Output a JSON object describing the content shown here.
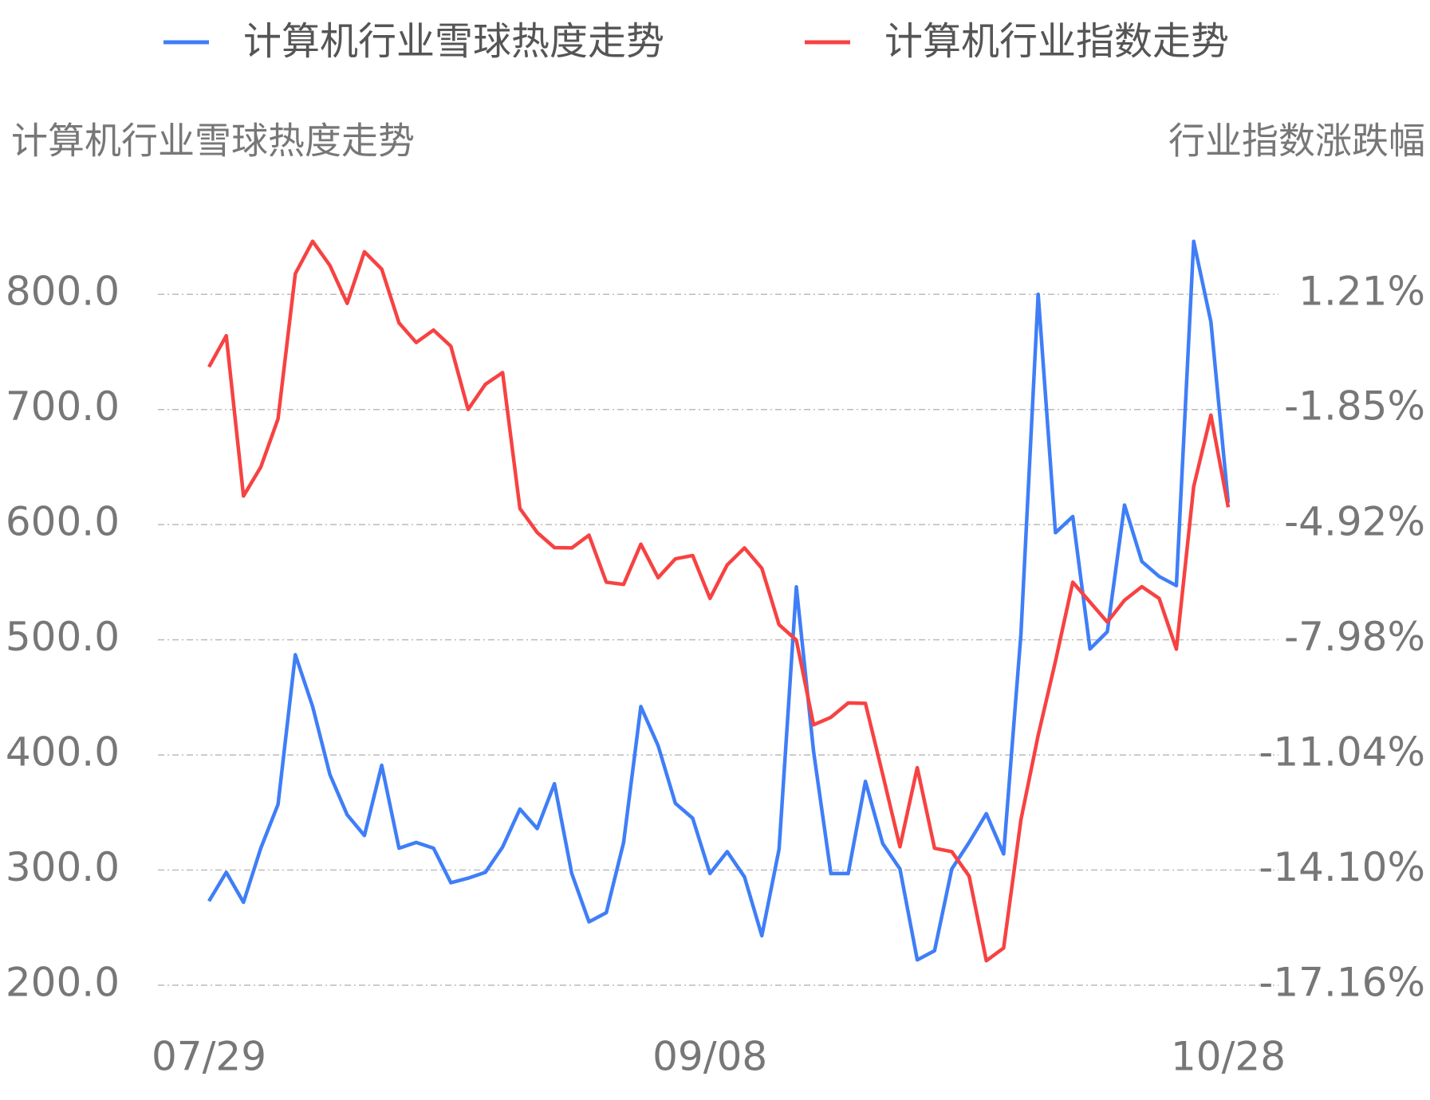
{
  "chart_data": {
    "type": "line",
    "legend": "top",
    "grid": true,
    "y_label": "计算机行业雪球热度走势",
    "y2_label": "行业指数涨跌幅",
    "categories": [
      "07/29",
      null,
      null,
      null,
      null,
      null,
      null,
      null,
      null,
      null,
      null,
      null,
      null,
      null,
      null,
      null,
      null,
      null,
      null,
      null,
      null,
      null,
      null,
      null,
      null,
      null,
      null,
      null,
      null,
      "09/08",
      null,
      null,
      null,
      null,
      null,
      null,
      null,
      null,
      null,
      null,
      null,
      null,
      null,
      null,
      null,
      null,
      null,
      null,
      null,
      null,
      null,
      null,
      null,
      null,
      null,
      null,
      null,
      null,
      null,
      "10/28"
    ],
    "ylim": [
      200,
      850
    ],
    "yticks": [
      {
        "value": 200,
        "label": "200.0"
      },
      {
        "value": 300,
        "label": "300.0"
      },
      {
        "value": 400,
        "label": "400.0"
      },
      {
        "value": 500,
        "label": "500.0"
      },
      {
        "value": 600,
        "label": "600.0"
      },
      {
        "value": 700,
        "label": "700.0"
      },
      {
        "value": 800,
        "label": "800.0"
      }
    ],
    "y2lim": [
      -17.16,
      2.73
    ],
    "y2ticks": [
      {
        "value": -17.16,
        "label": "-17.16%"
      },
      {
        "value": -14.1,
        "label": "-14.10%"
      },
      {
        "value": -11.04,
        "label": "-11.04%"
      },
      {
        "value": -7.98,
        "label": "-7.98%"
      },
      {
        "value": -4.92,
        "label": "-4.92%"
      },
      {
        "value": -1.85,
        "label": "-1.85%"
      },
      {
        "value": 1.21,
        "label": "1.21%"
      }
    ],
    "series": [
      {
        "name": "计算机行业雪球热度走势",
        "color": "#3f7ef7",
        "axis": "y",
        "values": [
          273,
          298,
          272,
          319,
          357,
          487,
          442,
          383,
          348,
          330,
          391,
          319,
          324,
          319,
          289,
          293,
          298,
          320,
          353,
          336,
          375,
          297,
          255,
          263,
          324,
          442,
          408,
          358,
          345,
          297,
          316,
          294,
          243,
          318,
          546,
          403,
          297,
          297,
          377,
          323,
          301,
          222,
          230,
          301,
          324,
          349,
          314,
          505,
          800,
          593,
          607,
          492,
          507,
          617,
          568,
          555,
          547,
          846,
          776,
          619
        ]
      },
      {
        "name": "计算机行业指数走势",
        "color": "#f74242",
        "axis": "y2",
        "values": [
          -0.73,
          0.1,
          -4.16,
          -3.39,
          -2.11,
          1.75,
          2.61,
          1.97,
          0.96,
          2.33,
          1.87,
          0.44,
          -0.08,
          0.25,
          -0.18,
          -1.86,
          -1.19,
          -0.88,
          -4.49,
          -5.13,
          -5.53,
          -5.54,
          -5.2,
          -6.45,
          -6.51,
          -5.44,
          -6.33,
          -5.83,
          -5.74,
          -6.88,
          -5.99,
          -5.54,
          -6.08,
          -7.58,
          -7.99,
          -10.24,
          -10.04,
          -9.66,
          -9.67,
          -11.56,
          -13.48,
          -11.38,
          -13.52,
          -13.61,
          -14.26,
          -16.51,
          -16.17,
          -12.76,
          -10.52,
          -8.55,
          -6.45,
          -6.98,
          -7.51,
          -6.93,
          -6.57,
          -6.88,
          -8.23,
          -3.91,
          -2.01,
          -4.46
        ]
      }
    ]
  }
}
